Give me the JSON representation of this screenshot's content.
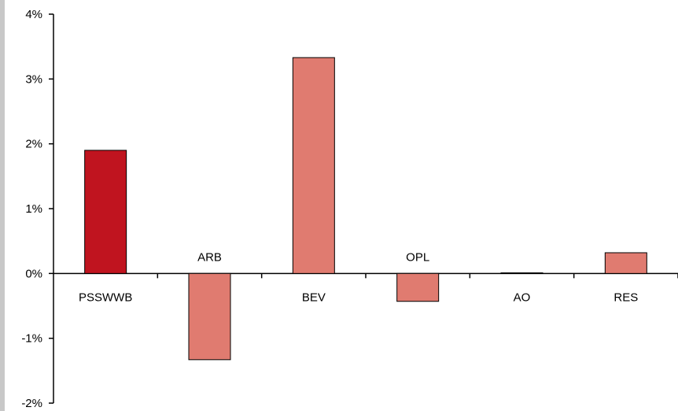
{
  "chart_data": {
    "type": "bar",
    "categories": [
      "PSSWWB",
      "ARB",
      "BEV",
      "OPL",
      "AO",
      "RES"
    ],
    "values": [
      1.9,
      -1.33,
      3.33,
      -0.43,
      0.01,
      0.32
    ],
    "unit": "%",
    "ylim": [
      -2,
      4
    ],
    "yticks": [
      4,
      3,
      2,
      1,
      0,
      -1,
      -2
    ],
    "ytick_labels": [
      "4%",
      "3%",
      "2%",
      "1%",
      "0%",
      "-1%",
      "-2%"
    ],
    "title": "",
    "xlabel": "",
    "ylabel": "",
    "grid": false,
    "colors": {
      "highlight": "#c0141f",
      "default": "#e07b70",
      "bar_outline": "#000000",
      "axis": "#000000",
      "page_edge": "#c8c8c8"
    },
    "highlight_index": 0
  }
}
